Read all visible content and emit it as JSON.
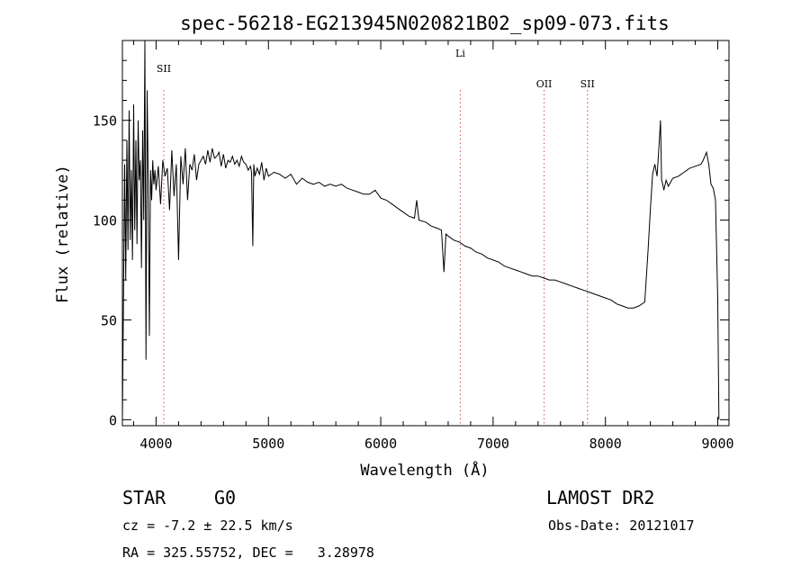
{
  "chart_data": {
    "type": "line",
    "title": "spec-56218-EG213945N020821B02_sp09-073.fits",
    "xlabel": "Wavelength (Å)",
    "ylabel": "Flux (relative)",
    "xlim": [
      3700,
      9100
    ],
    "ylim": [
      -3,
      190
    ],
    "xticks": [
      4000,
      5000,
      6000,
      7000,
      8000,
      9000
    ],
    "yticks": [
      0,
      50,
      100,
      150
    ],
    "grid": false,
    "legend": "none",
    "series": [
      {
        "x": [
          3700,
          3710,
          3720,
          3730,
          3740,
          3750,
          3760,
          3770,
          3780,
          3790,
          3800,
          3810,
          3820,
          3830,
          3840,
          3850,
          3860,
          3870,
          3880,
          3890,
          3900,
          3910,
          3920,
          3930,
          3940,
          3950,
          3960,
          3970,
          3980,
          3990,
          4000,
          4020,
          4040,
          4060,
          4080,
          4100,
          4120,
          4140,
          4160,
          4180,
          4200,
          4220,
          4240,
          4260,
          4280,
          4300,
          4320,
          4340,
          4360,
          4380,
          4400,
          4420,
          4440,
          4460,
          4480,
          4500,
          4520,
          4540,
          4560,
          4580,
          4600,
          4620,
          4640,
          4660,
          4680,
          4700,
          4720,
          4740,
          4760,
          4780,
          4800,
          4820,
          4840,
          4850,
          4861,
          4870,
          4880,
          4900,
          4920,
          4940,
          4960,
          4980,
          5000,
          5050,
          5100,
          5150,
          5200,
          5250,
          5300,
          5350,
          5400,
          5450,
          5500,
          5550,
          5600,
          5650,
          5700,
          5750,
          5800,
          5850,
          5900,
          5950,
          6000,
          6050,
          6100,
          6150,
          6200,
          6250,
          6300,
          6320,
          6340,
          6400,
          6450,
          6500,
          6540,
          6563,
          6580,
          6600,
          6650,
          6700,
          6750,
          6800,
          6850,
          6900,
          6950,
          7000,
          7050,
          7100,
          7150,
          7200,
          7250,
          7300,
          7350,
          7400,
          7450,
          7500,
          7550,
          7600,
          7650,
          7700,
          7750,
          7800,
          7850,
          7900,
          7950,
          8000,
          8050,
          8100,
          8150,
          8200,
          8250,
          8300,
          8350,
          8380,
          8400,
          8420,
          8440,
          8460,
          8480,
          8490,
          8500,
          8510,
          8520,
          8540,
          8560,
          8600,
          8650,
          8700,
          8750,
          8800,
          8850,
          8870,
          8900,
          8920,
          8940,
          8960,
          8980,
          9000,
          9010
        ],
        "y": [
          0,
          60,
          128,
          70,
          140,
          85,
          155,
          90,
          125,
          80,
          158,
          95,
          140,
          88,
          150,
          120,
          130,
          76,
          145,
          100,
          190,
          30,
          165,
          120,
          42,
          125,
          110,
          130,
          118,
          125,
          115,
          127,
          108,
          130,
          122,
          126,
          105,
          135,
          112,
          128,
          80,
          132,
          118,
          136,
          110,
          128,
          125,
          133,
          120,
          128,
          130,
          132,
          128,
          135,
          129,
          136,
          131,
          132,
          134,
          127,
          133,
          126,
          130,
          129,
          132,
          128,
          130,
          127,
          132,
          129,
          128,
          125,
          127,
          124,
          87,
          128,
          122,
          126,
          123,
          129,
          120,
          126,
          122,
          124,
          123,
          121,
          123,
          118,
          121,
          119,
          118,
          119,
          117,
          118,
          117,
          118,
          116,
          115,
          114,
          113,
          113,
          115,
          111,
          110,
          108,
          106,
          104,
          102,
          101,
          110,
          100,
          99,
          97,
          96,
          95,
          74,
          93,
          92,
          90,
          89,
          87,
          86,
          84,
          83,
          81,
          80,
          79,
          77,
          76,
          75,
          74,
          73,
          72,
          72,
          71,
          70,
          70,
          69,
          68,
          67,
          66,
          65,
          64,
          63,
          62,
          61,
          60,
          58,
          57,
          56,
          56,
          57,
          59,
          85,
          105,
          123,
          128,
          122,
          140,
          150,
          120,
          118,
          115,
          120,
          117,
          121,
          122,
          124,
          126,
          127,
          128,
          130,
          134,
          128,
          118,
          116,
          110,
          60,
          0
        ]
      }
    ],
    "line_markers": [
      {
        "label": "SII",
        "x": 4068
      },
      {
        "label": "Li",
        "x": 6708
      },
      {
        "label": "OII",
        "x": 7454
      },
      {
        "label": "SII",
        "x": 7840
      }
    ],
    "marker_color": "#e06060",
    "line_color": "#000000"
  },
  "info": {
    "object_type": "STAR",
    "subclass": "G0",
    "survey": "LAMOST DR2",
    "cz": "cz = -7.2 ± 22.5 km/s",
    "obs_date": "Obs-Date: 20121017",
    "coords": "RA = 325.55752, DEC =   3.28978"
  }
}
